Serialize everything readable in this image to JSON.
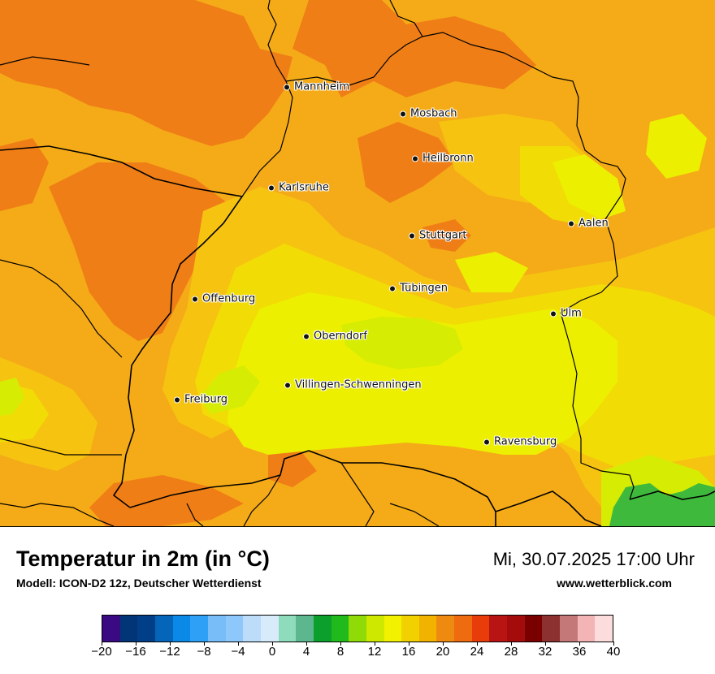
{
  "map": {
    "colors": {
      "orange_dark": "#ef7e16",
      "orange": "#f5ab17",
      "gold": "#f6c311",
      "yellow": "#f2dc05",
      "lemon": "#ecf000",
      "lime": "#d6ec02",
      "green_light": "#9fd92c",
      "green": "#3fb93c"
    },
    "cities": [
      {
        "name": "Mannheim"
      },
      {
        "name": "Mosbach"
      },
      {
        "name": "Heilbronn"
      },
      {
        "name": "Karlsruhe"
      },
      {
        "name": "Aalen"
      },
      {
        "name": "Stuttgart"
      },
      {
        "name": "Tübingen"
      },
      {
        "name": "Offenburg"
      },
      {
        "name": "Ulm"
      },
      {
        "name": "Oberndorf"
      },
      {
        "name": "Villingen-Schwenningen"
      },
      {
        "name": "Freiburg"
      },
      {
        "name": "Ravensburg"
      }
    ]
  },
  "footer": {
    "title": "Temperatur in 2m (in °C)",
    "model": "Modell: ICON-D2 12z, Deutscher Wetterdienst",
    "date": "Mi, 30.07.2025 17:00 Uhr",
    "site": "www.wetterblick.com"
  },
  "legend": {
    "min": -20,
    "max": 40,
    "tick_labels": [
      "−20",
      "−16",
      "−12",
      "−8",
      "−4",
      "0",
      "4",
      "8",
      "12",
      "16",
      "20",
      "24",
      "28",
      "32",
      "36",
      "40"
    ],
    "colors": [
      "#3a0a82",
      "#023578",
      "#003f88",
      "#0565b8",
      "#0a8ae6",
      "#2ea0f5",
      "#78bdf8",
      "#8ec7f9",
      "#bcdcf9",
      "#d8ebfb",
      "#8edcbc",
      "#5cb78e",
      "#0c9f2c",
      "#20ba1c",
      "#90da08",
      "#cfe800",
      "#f2f200",
      "#f2d100",
      "#f2b200",
      "#ef8a10",
      "#ef6b10",
      "#e83d0a",
      "#b81414",
      "#a40c0c",
      "#7a0000",
      "#8c3030",
      "#c47878",
      "#f2b4b4",
      "#fcdcdc"
    ]
  }
}
